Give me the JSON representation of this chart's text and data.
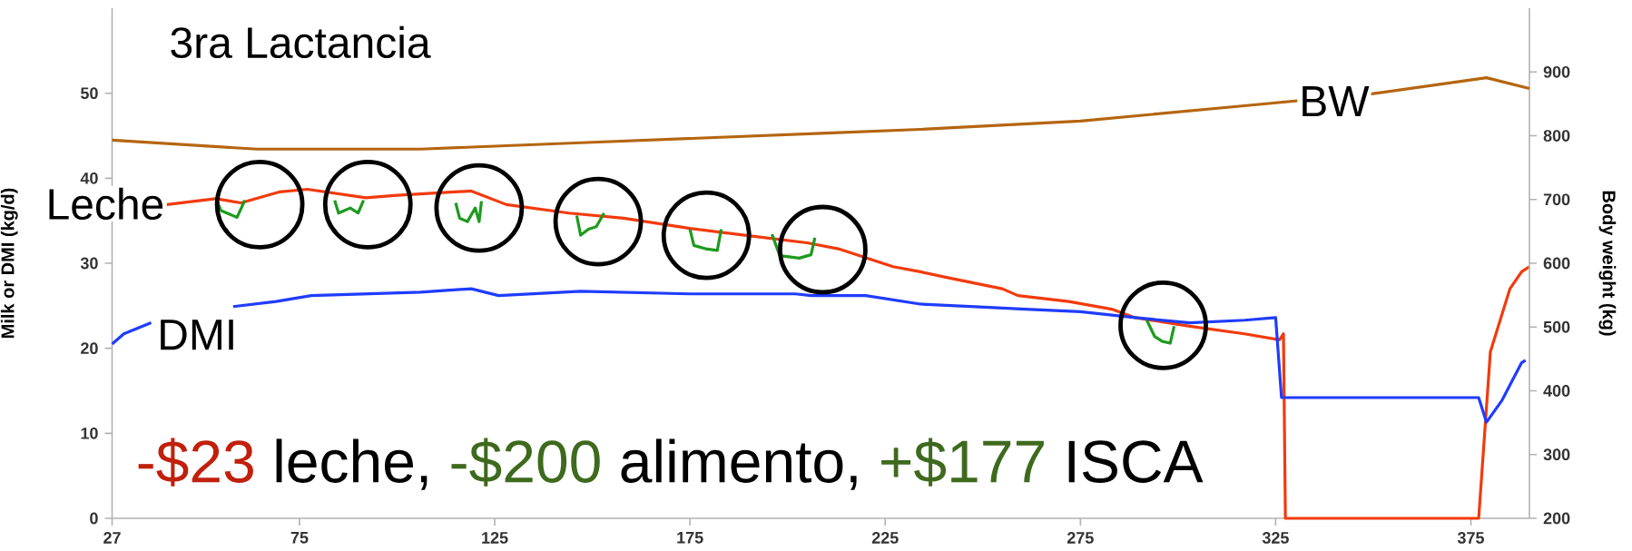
{
  "chart_data": {
    "type": "line",
    "title": "3ra Lactancia",
    "ylabel": "Milk or DMI (kg/d)",
    "y2label": "Body weight (kg)",
    "xlim": [
      27,
      390
    ],
    "xticks": [
      27,
      75,
      125,
      175,
      225,
      275,
      325,
      375
    ],
    "ylim": [
      0,
      60
    ],
    "yticks": [
      0,
      10,
      20,
      30,
      40,
      50
    ],
    "y2lim": [
      200,
      1000
    ],
    "y2ticks": [
      200,
      300,
      400,
      500,
      600,
      700,
      800,
      900
    ],
    "grid": false,
    "annotations": [
      "-$23",
      "leche,",
      "-$200",
      "alimento,",
      "+$177",
      "ISCA"
    ],
    "series": [
      {
        "name": "BW",
        "color": "#b5650f",
        "axis": "y2",
        "x": [
          27,
          64,
          106,
          147,
          210,
          234,
          275,
          317,
          350,
          379,
          390
        ],
        "values": [
          793,
          779,
          779,
          789,
          804,
          810,
          823,
          847,
          866,
          891,
          874
        ]
      },
      {
        "name": "Leche",
        "color": "#f23a0c",
        "x": [
          41,
          53.5,
          60,
          70,
          77,
          92,
          100,
          119,
          128,
          144,
          158,
          175,
          189,
          205,
          213,
          227,
          234,
          241,
          255,
          259,
          272,
          283,
          289,
          303,
          317,
          326,
          327,
          327.5,
          377,
          380,
          385,
          388,
          390
        ],
        "values": [
          36.9,
          37.6,
          37.1,
          38.4,
          38.7,
          37.7,
          38.0,
          38.5,
          36.9,
          35.9,
          35.3,
          34.1,
          33.3,
          32.4,
          31.7,
          29.6,
          29.0,
          28.3,
          27.0,
          26.2,
          25.5,
          24.6,
          23.6,
          22.6,
          21.7,
          21.0,
          21.7,
          0,
          0,
          19.6,
          27.0,
          29.0,
          29.6
        ]
      },
      {
        "color": "#1e9a1e",
        "x": [
          53.5,
          54.9,
          59,
          61,
          70,
          84,
          85,
          88,
          90,
          91.4,
          100,
          115,
          116,
          118,
          120,
          121,
          121.6,
          130,
          146,
          147,
          149,
          151,
          153,
          160,
          175,
          176,
          179,
          182,
          183,
          190,
          196,
          198,
          203,
          206,
          207,
          250,
          292,
          294,
          296,
          298,
          299
        ],
        "values": [
          37.7,
          36.2,
          35.4,
          37.4,
          null,
          37.4,
          35.9,
          36.5,
          35.9,
          37.4,
          null,
          37.1,
          35.3,
          34.9,
          36.5,
          34.9,
          37.3,
          null,
          35.6,
          33.3,
          34.0,
          34.3,
          35.9,
          null,
          34.0,
          32.1,
          31.7,
          31.5,
          34.0,
          null,
          33.4,
          30.9,
          30.6,
          31.0,
          33.0,
          null,
          23.3,
          21.4,
          20.8,
          20.6,
          22.6
        ]
      },
      {
        "name": "DMI",
        "color": "#1f3cff",
        "x": [
          27,
          30,
          37,
          47,
          58,
          69,
          78,
          92,
          106,
          119,
          126,
          147,
          175,
          202,
          206,
          220,
          234,
          248,
          261,
          275,
          289,
          303,
          317,
          325,
          326.5,
          377,
          379,
          383,
          388,
          389
        ],
        "values": [
          20.5,
          21.7,
          23.0,
          null,
          24.9,
          25.5,
          26.2,
          26.4,
          26.6,
          27.0,
          26.2,
          26.7,
          26.4,
          26.4,
          26.2,
          26.2,
          25.2,
          24.9,
          24.6,
          24.3,
          23.6,
          23.0,
          23.3,
          23.6,
          14.2,
          14.2,
          11.3,
          13.9,
          18.3,
          18.6
        ]
      }
    ]
  }
}
